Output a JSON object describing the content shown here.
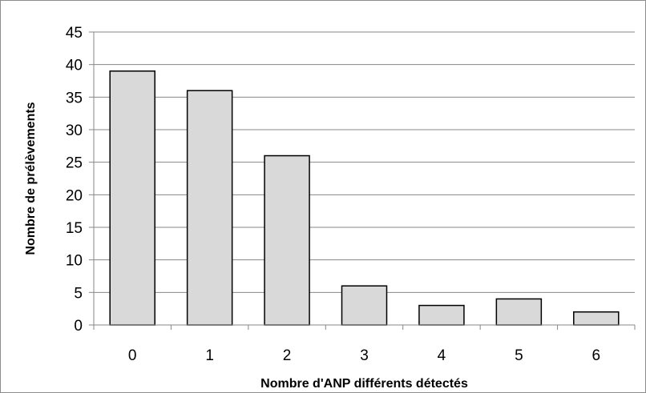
{
  "chart_data": {
    "type": "bar",
    "title": "",
    "xlabel": "Nombre d'ANP différents détectés",
    "ylabel": "Nombre de prélèvements",
    "categories": [
      "0",
      "1",
      "2",
      "3",
      "4",
      "5",
      "6"
    ],
    "values": [
      39,
      36,
      26,
      6,
      3,
      4,
      2
    ],
    "ylim": [
      0,
      45
    ],
    "yticks": [
      0,
      5,
      10,
      15,
      20,
      25,
      30,
      35,
      40,
      45
    ],
    "grid": true,
    "legend": "none",
    "colors": {
      "bar_fill": "#d9d9d9",
      "bar_stroke": "#000000",
      "grid": "#878787",
      "axis": "#878787"
    }
  }
}
